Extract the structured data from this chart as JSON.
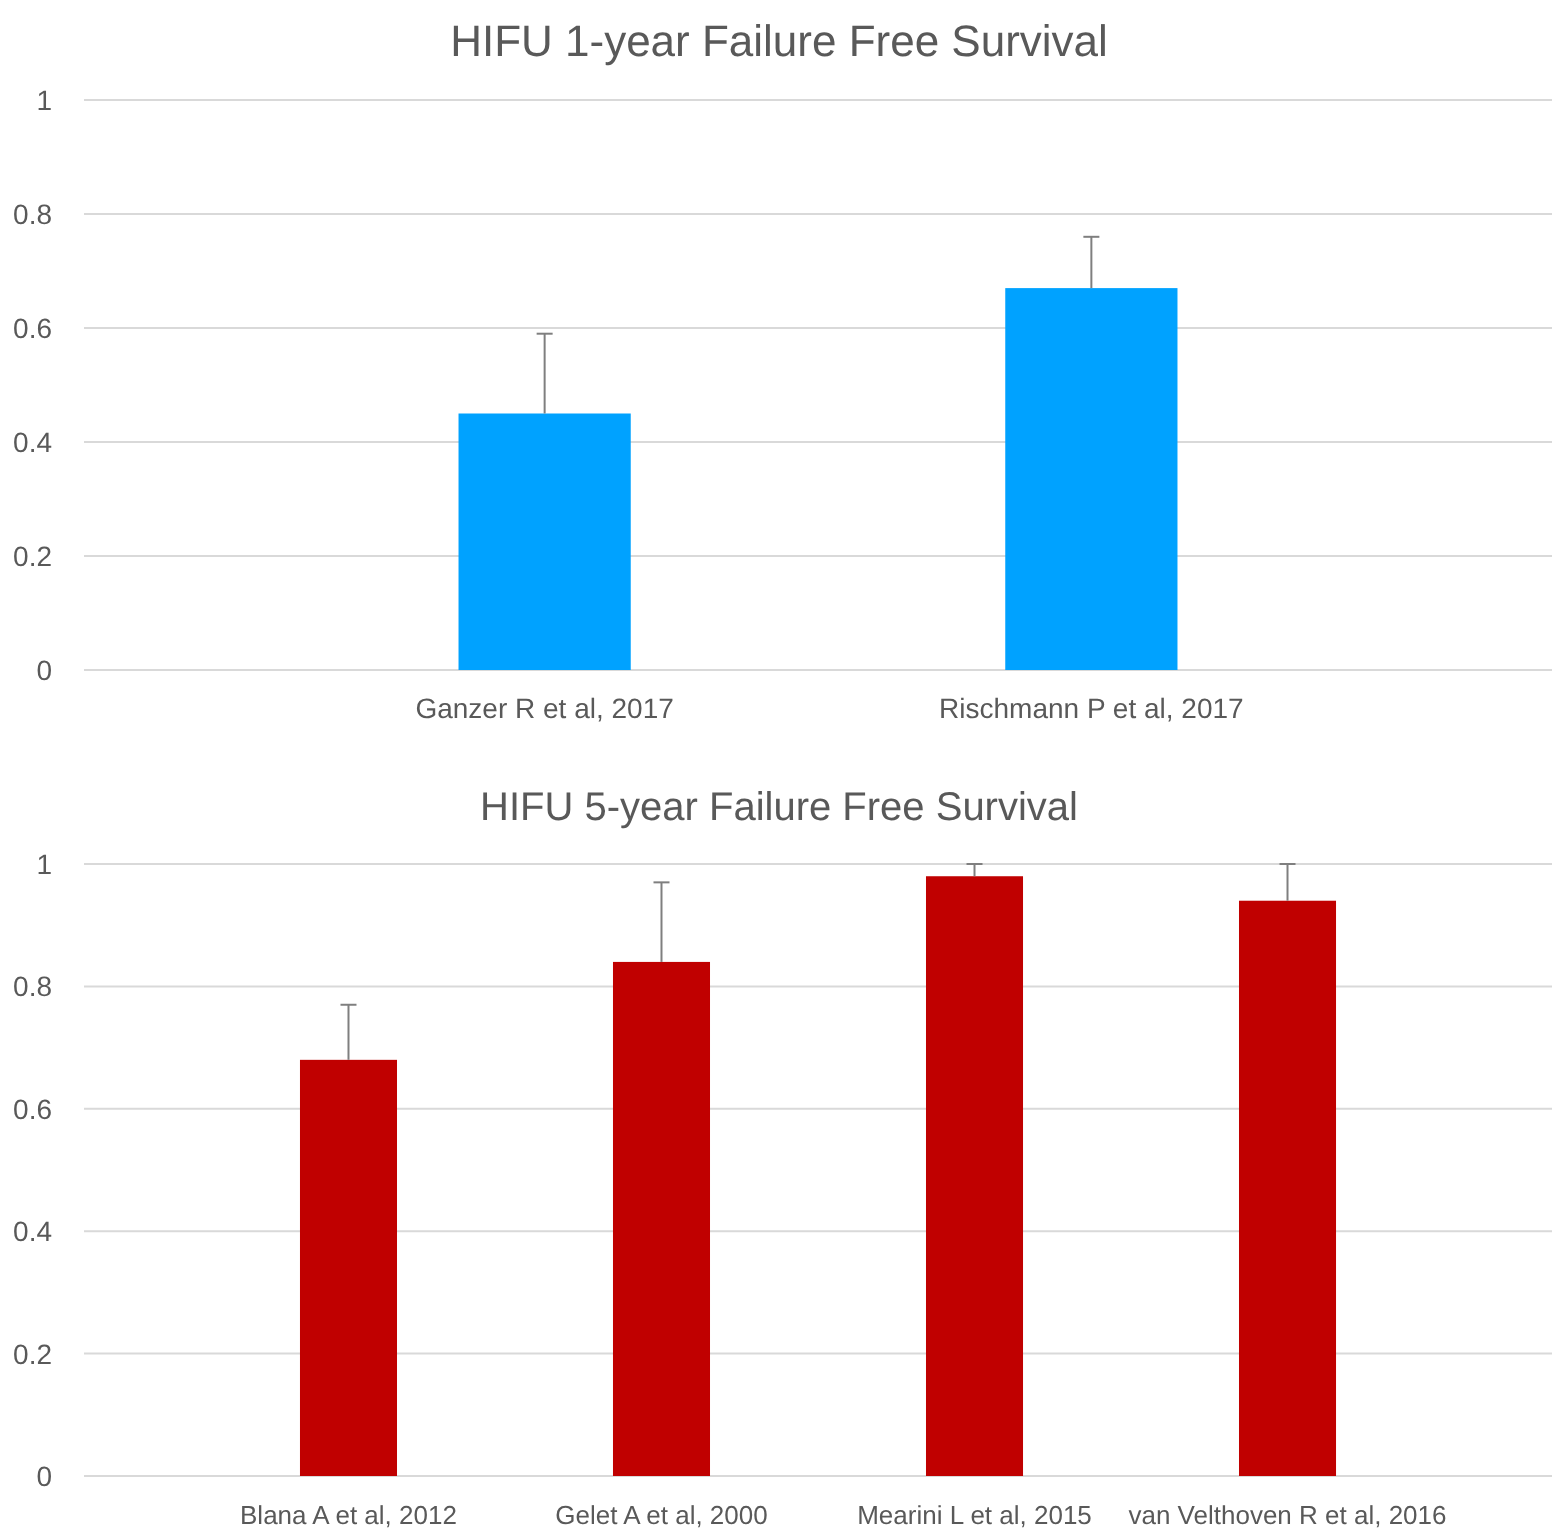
{
  "chart_data": [
    {
      "type": "bar",
      "title": "HIFU 1-year Failure Free Survival",
      "categories": [
        "Ganzer R et al, 2017",
        "Rischmann P et al, 2017"
      ],
      "values": [
        0.45,
        0.67
      ],
      "errors": [
        [
          0.45,
          0.59
        ],
        [
          0.67,
          0.76
        ]
      ],
      "color": "#00a2ff",
      "ylim": [
        0,
        1
      ],
      "yticks": [
        0,
        0.2,
        0.4,
        0.6,
        0.8,
        1
      ],
      "grid": "y"
    },
    {
      "type": "bar",
      "title": "HIFU 5-year Failure Free Survival",
      "categories": [
        "Blana A et al, 2012",
        "Gelet A et al, 2000",
        "Mearini L et al, 2015",
        "van Velthoven R et al, 2016"
      ],
      "values": [
        0.68,
        0.84,
        0.98,
        0.94
      ],
      "errors": [
        [
          0.68,
          0.77
        ],
        [
          0.84,
          0.97
        ],
        [
          0.98,
          1.0
        ],
        [
          0.94,
          1.0
        ]
      ],
      "color": "#c00000",
      "ylim": [
        0,
        1
      ],
      "yticks": [
        0,
        0.2,
        0.4,
        0.6,
        0.8,
        1
      ],
      "grid": "y"
    }
  ]
}
